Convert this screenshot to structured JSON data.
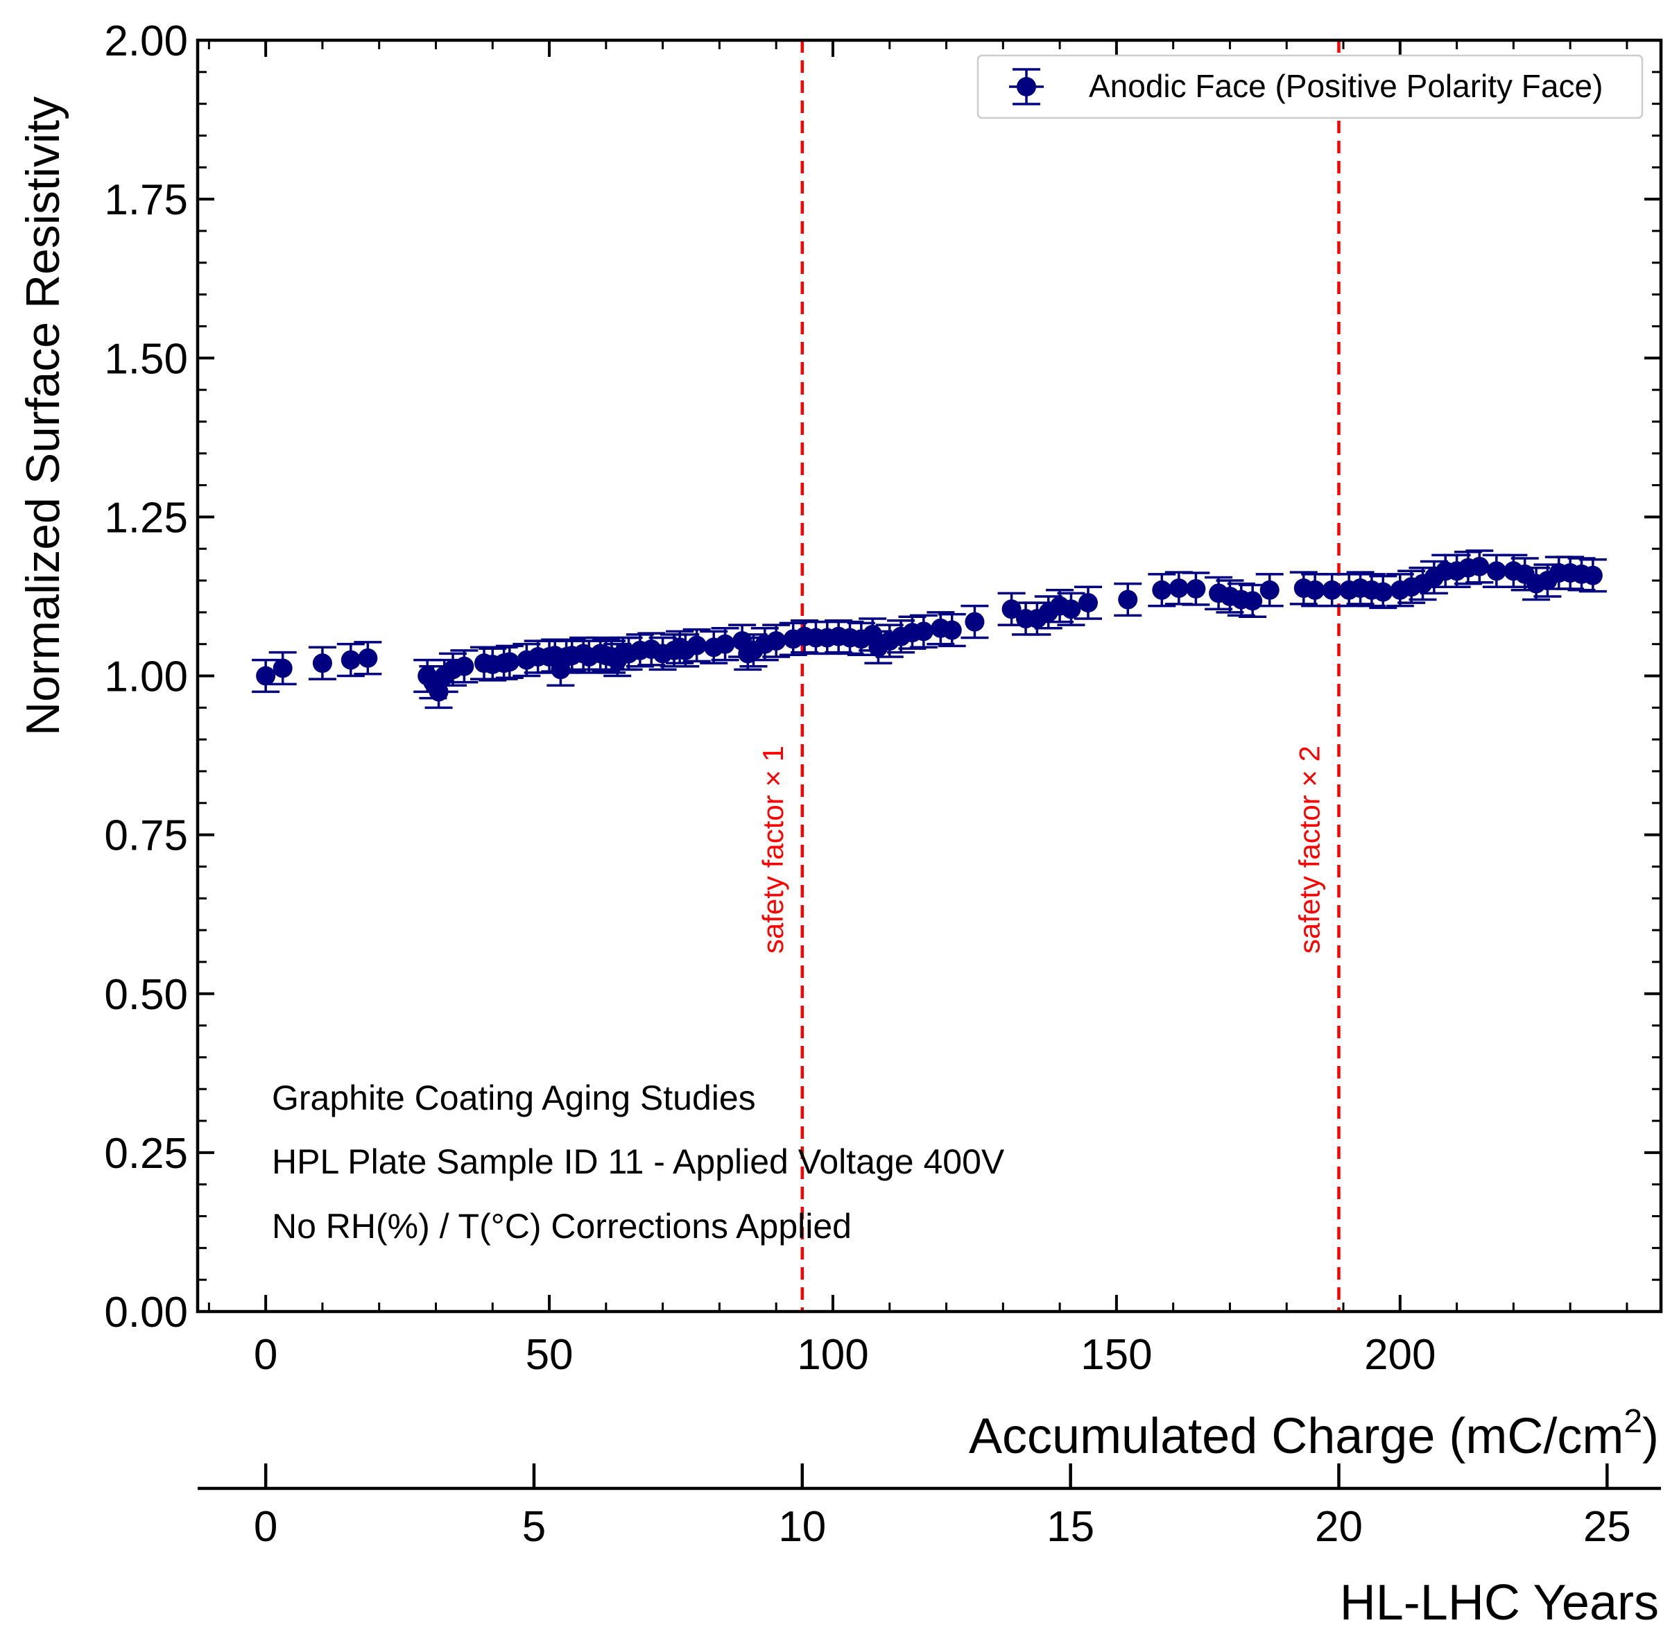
{
  "chart_data": {
    "type": "scatter",
    "ylabel": "Normalized Surface Resistivity",
    "xlabel_prefix": "Accumulated Charge (mC/cm",
    "xlabel_sup": "2",
    "xlabel_suffix": ")",
    "secondary_xlabel": "HL-LHC Years",
    "xlim": [
      -12,
      246
    ],
    "ylim": [
      0,
      2
    ],
    "yticks": [
      0.0,
      0.25,
      0.5,
      0.75,
      1.0,
      1.25,
      1.5,
      1.75,
      2.0
    ],
    "ytick_labels": [
      "0.00",
      "0.25",
      "0.50",
      "0.75",
      "1.00",
      "1.25",
      "1.50",
      "1.75",
      "2.00"
    ],
    "xticks": [
      0,
      50,
      100,
      150,
      200
    ],
    "xtick_labels": [
      "0",
      "50",
      "100",
      "150",
      "200"
    ],
    "secondary_xticks_charge": [
      0,
      47.3,
      94.6,
      141.9,
      189.2,
      236.5
    ],
    "secondary_xtick_labels": [
      "0",
      "5",
      "10",
      "15",
      "20",
      "25"
    ],
    "series": [
      {
        "name": "Anodic Face (Positive Polarity Face)",
        "color": "#000080",
        "x": [
          0,
          3,
          10,
          15,
          18,
          28.5,
          29.5,
          30.5,
          31.5,
          33,
          35,
          38.5,
          40,
          42,
          43,
          46,
          48,
          50,
          51,
          52,
          53,
          54,
          56,
          57,
          59,
          60,
          61,
          62,
          63,
          64,
          66,
          68,
          70,
          72,
          73,
          74,
          76,
          79,
          81,
          84,
          85,
          86,
          88,
          90,
          93,
          95,
          97,
          99,
          101,
          103,
          105,
          107,
          108,
          110,
          112,
          114,
          116,
          119,
          121,
          125,
          131.5,
          134,
          136,
          138,
          140,
          142,
          145,
          152,
          158,
          161,
          164,
          168,
          170,
          172,
          174,
          177,
          183,
          185,
          188,
          191,
          193,
          195,
          197,
          200,
          202,
          204,
          206,
          208,
          210,
          212,
          214,
          217,
          220,
          222,
          224,
          226,
          228,
          230,
          232,
          234
        ],
        "y": [
          1.0,
          1.012,
          1.02,
          1.025,
          1.028,
          1.0,
          0.99,
          0.975,
          1.0,
          1.01,
          1.015,
          1.02,
          1.018,
          1.02,
          1.022,
          1.025,
          1.03,
          1.03,
          1.032,
          1.01,
          1.03,
          1.032,
          1.035,
          1.03,
          1.035,
          1.032,
          1.03,
          1.025,
          1.035,
          1.035,
          1.04,
          1.042,
          1.035,
          1.04,
          1.045,
          1.04,
          1.048,
          1.045,
          1.05,
          1.055,
          1.035,
          1.04,
          1.05,
          1.055,
          1.058,
          1.062,
          1.06,
          1.06,
          1.062,
          1.06,
          1.058,
          1.065,
          1.045,
          1.055,
          1.062,
          1.068,
          1.07,
          1.075,
          1.072,
          1.085,
          1.105,
          1.09,
          1.09,
          1.1,
          1.11,
          1.105,
          1.115,
          1.12,
          1.135,
          1.138,
          1.137,
          1.13,
          1.125,
          1.12,
          1.118,
          1.135,
          1.138,
          1.135,
          1.135,
          1.135,
          1.138,
          1.135,
          1.132,
          1.135,
          1.14,
          1.145,
          1.155,
          1.165,
          1.165,
          1.17,
          1.172,
          1.165,
          1.165,
          1.16,
          1.145,
          1.15,
          1.162,
          1.162,
          1.16,
          1.158
        ],
        "yerr": 0.025,
        "xerr": 0
      }
    ],
    "vlines": [
      {
        "x": 94.6,
        "label": "safety factor × 1",
        "color": "#ff0000",
        "style": "dashed"
      },
      {
        "x": 189.2,
        "label": "safety factor × 2",
        "color": "#ff0000",
        "style": "dashed"
      }
    ],
    "annotations": [
      "Graphite Coating Aging Studies",
      "HPL Plate Sample ID 11 - Applied Voltage 400V",
      "No RH(%) / T(°C) Corrections Applied"
    ],
    "legend_position": "top-right"
  }
}
